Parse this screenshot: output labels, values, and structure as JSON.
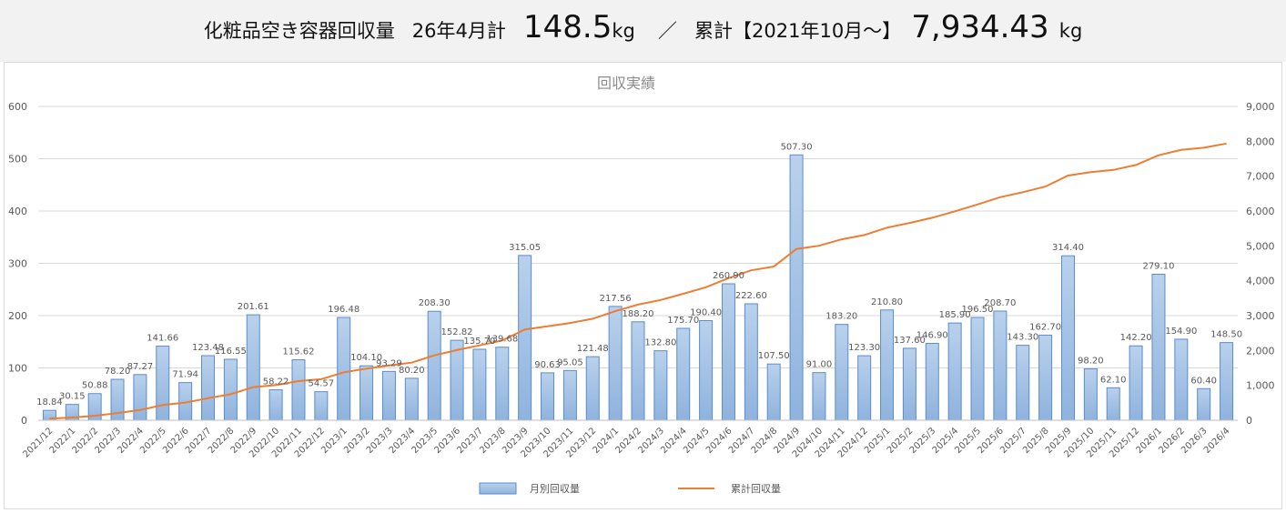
{
  "header": {
    "title": "化粧品空き容器回収量",
    "month_label": "26年4月計",
    "month_value": "148.5",
    "month_unit": "kg",
    "separator": "／",
    "cumulative_label": "累計【2021年10月～】",
    "cumulative_value": "7,934.43",
    "cumulative_unit": "kg"
  },
  "chart_data": {
    "type": "bar",
    "title": "回収実績",
    "categories": [
      "2021/12",
      "2022/1",
      "2022/2",
      "2022/3",
      "2022/4",
      "2022/5",
      "2022/6",
      "2022/7",
      "2022/8",
      "2022/9",
      "2022/10",
      "2022/11",
      "2022/12",
      "2023/1",
      "2023/2",
      "2023/3",
      "2023/4",
      "2023/5",
      "2023/6",
      "2023/7",
      "2023/8",
      "2023/9",
      "2023/10",
      "2023/11",
      "2023/12",
      "2024/1",
      "2024/2",
      "2024/3",
      "2024/4",
      "2024/5",
      "2024/6",
      "2024/7",
      "2024/8",
      "2024/9",
      "2024/10",
      "2024/11",
      "2024/12",
      "2025/1",
      "2025/2",
      "2025/3",
      "2025/4",
      "2025/5",
      "2025/6",
      "2025/7",
      "2025/8",
      "2025/9",
      "2025/10",
      "2025/11",
      "2025/12",
      "2026/1",
      "2026/2",
      "2026/3",
      "2026/4"
    ],
    "series": [
      {
        "name": "月別回収量",
        "type": "bar",
        "axis": "left",
        "values": [
          18.84,
          30.15,
          50.88,
          78.2,
          87.27,
          141.66,
          71.94,
          123.48,
          116.55,
          201.61,
          58.22,
          115.62,
          54.57,
          196.48,
          104.1,
          93.29,
          80.2,
          208.3,
          152.82,
          135.7,
          139.68,
          315.05,
          90.63,
          95.05,
          121.48,
          217.56,
          188.2,
          132.8,
          175.7,
          190.4,
          260.9,
          222.6,
          107.5,
          507.3,
          91.0,
          183.2,
          123.3,
          210.8,
          137.6,
          146.9,
          185.9,
          196.5,
          208.7,
          143.3,
          162.7,
          314.4,
          98.2,
          62.1,
          142.2,
          279.1,
          154.9,
          60.4,
          148.5
        ],
        "labels": [
          "18.84",
          "30.15",
          "50.88",
          "78.20",
          "87.27",
          "141.66",
          "71.94",
          "123.48",
          "116.55",
          "201.61",
          "58.22",
          "115.62",
          "54.57",
          "196.48",
          "104.10",
          "93.29",
          "80.20",
          "208.30",
          "152.82",
          "135.70",
          "139.68",
          "315.05",
          "90.63",
          "95.05",
          "121.48",
          "217.56",
          "188.20",
          "132.80",
          "175.70",
          "190.40",
          "260.90",
          "222.60",
          "107.50",
          "507.30",
          "91.00",
          "183.20",
          "123.30",
          "210.80",
          "137.60",
          "146.90",
          "185.90",
          "196.50",
          "208.70",
          "143.30",
          "162.70",
          "314.40",
          "98.20",
          "62.10",
          "142.20",
          "279.10",
          "154.90",
          "60.40",
          "148.50"
        ]
      },
      {
        "name": "累計回収量",
        "type": "line",
        "axis": "right",
        "values": [
          47,
          77,
          128,
          206,
          293,
          435,
          507,
          631,
          747,
          949,
          1007,
          1123,
          1177,
          1374,
          1478,
          1571,
          1651,
          1860,
          2012,
          2148,
          2288,
          2603,
          2694,
          2789,
          2910,
          3128,
          3316,
          3449,
          3625,
          3815,
          4076,
          4299,
          4406,
          4913,
          5004,
          5188,
          5311,
          5522,
          5659,
          5806,
          5992,
          6189,
          6397,
          6541,
          6703,
          7018,
          7116,
          7178,
          7320,
          7599,
          7754,
          7815,
          7934.43
        ]
      }
    ],
    "y_left": {
      "min": 0,
      "max": 600,
      "ticks": [
        "0",
        "100",
        "200",
        "300",
        "400",
        "500",
        "600"
      ]
    },
    "y_right": {
      "min": 0,
      "max": 9000,
      "ticks": [
        "0",
        "1,000",
        "2,000",
        "3,000",
        "4,000",
        "5,000",
        "6,000",
        "7,000",
        "8,000",
        "9,000"
      ]
    },
    "grid": true,
    "legend_position": "bottom",
    "colors": {
      "bar_fill_top": "#b9d1ec",
      "bar_fill_bottom": "#8fb3de",
      "bar_stroke": "#5b8ccc",
      "line": "#ed7d31",
      "grid": "#d9d9d9",
      "text": "#595959"
    }
  }
}
